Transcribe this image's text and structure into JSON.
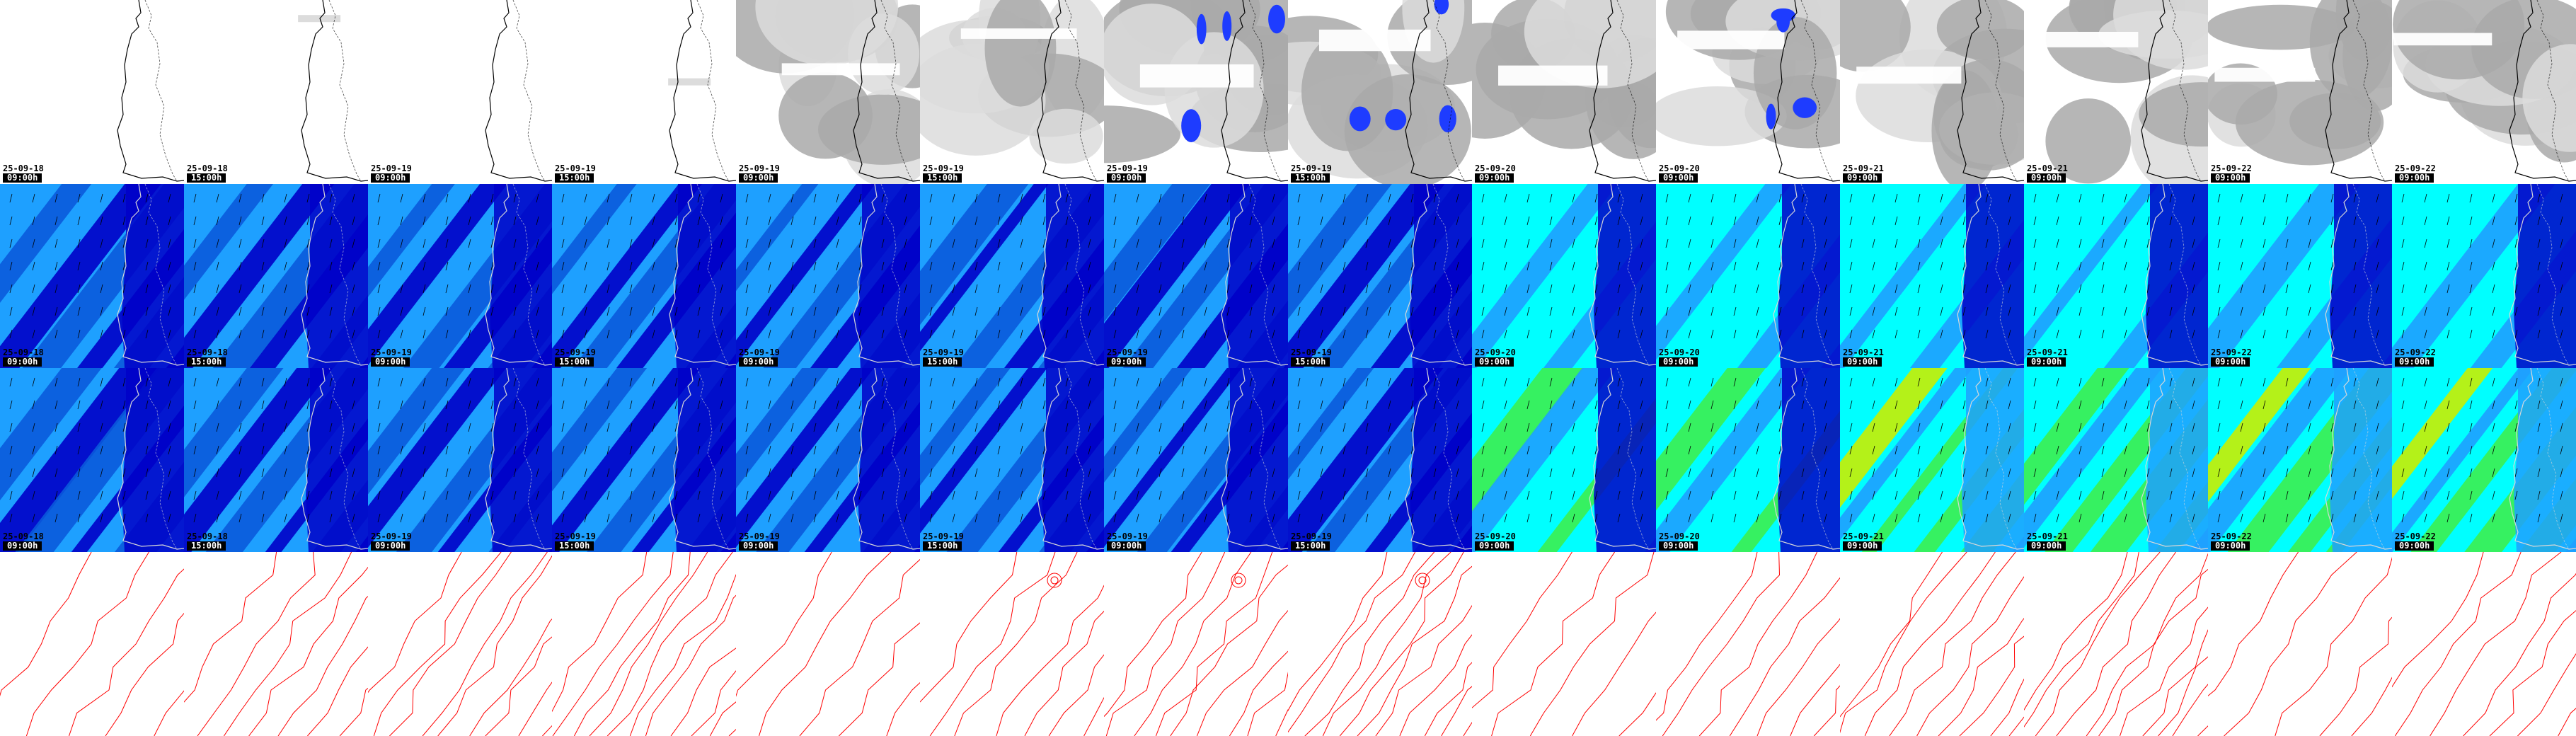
{
  "row_types": [
    "cloud",
    "wind-speed",
    "wind-gust",
    "pressure"
  ],
  "columns": [
    {
      "date": "25-09-18",
      "time": "09:00h"
    },
    {
      "date": "25-09-18",
      "time": "15:00h"
    },
    {
      "date": "25-09-19",
      "time": "09:00h"
    },
    {
      "date": "25-09-19",
      "time": "15:00h"
    },
    {
      "date": "25-09-19",
      "time": "09:00h"
    },
    {
      "date": "25-09-19",
      "time": "15:00h"
    },
    {
      "date": "25-09-19",
      "time": "09:00h"
    },
    {
      "date": "25-09-19",
      "time": "15:00h"
    },
    {
      "date": "25-09-20",
      "time": "09:00h"
    },
    {
      "date": "25-09-20",
      "time": "09:00h"
    },
    {
      "date": "25-09-21",
      "time": "09:00h"
    },
    {
      "date": "25-09-21",
      "time": "09:00h"
    },
    {
      "date": "25-09-22",
      "time": "09:00h"
    },
    {
      "date": "25-09-22",
      "time": "09:00h"
    }
  ],
  "colors": {
    "cloud_bg": "#ffffff",
    "cloud_gray": "#a9a9a9",
    "cloud_light": "#dcdcdc",
    "precip_blue": "#1e3cff",
    "wind_cyan": "#00ffff",
    "wind_light": "#1ea0ff",
    "wind_mid": "#0a5adc",
    "wind_dark": "#0000c8",
    "wind_green": "#3cf050",
    "wind_yellow": "#c8f000",
    "isobar_red": "#ff0000",
    "coast": "#000000"
  }
}
